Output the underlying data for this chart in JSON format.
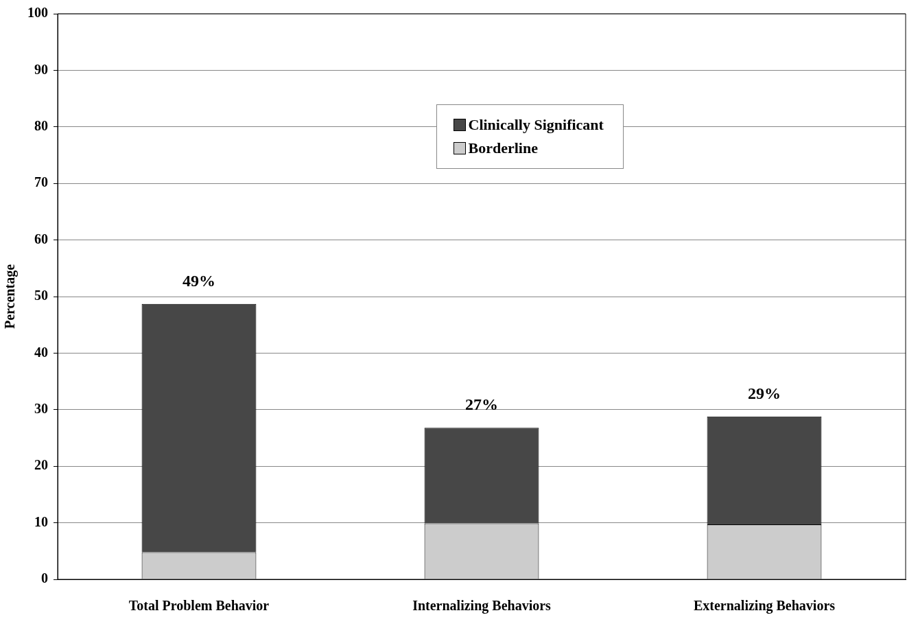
{
  "chart_data": {
    "type": "bar",
    "ylabel": "Percentage",
    "categories": [
      "Total Problem Behavior",
      "Internalizing Behaviors",
      "Externalizing Behaviors"
    ],
    "stacked": true,
    "series": [
      {
        "name": "Borderline",
        "color": "#cccccc",
        "values": [
          4.8,
          9.9,
          9.7
        ]
      },
      {
        "name": "Clinically Significant",
        "color": "#474747",
        "values": [
          43.9,
          16.9,
          19.1
        ]
      }
    ],
    "totals": [
      "49%",
      "27%",
      "29%"
    ],
    "ylim": [
      0,
      100
    ],
    "yticks": [
      0,
      10,
      20,
      30,
      40,
      50,
      60,
      70,
      80,
      90,
      100
    ],
    "grid": "y",
    "legend": "top"
  }
}
